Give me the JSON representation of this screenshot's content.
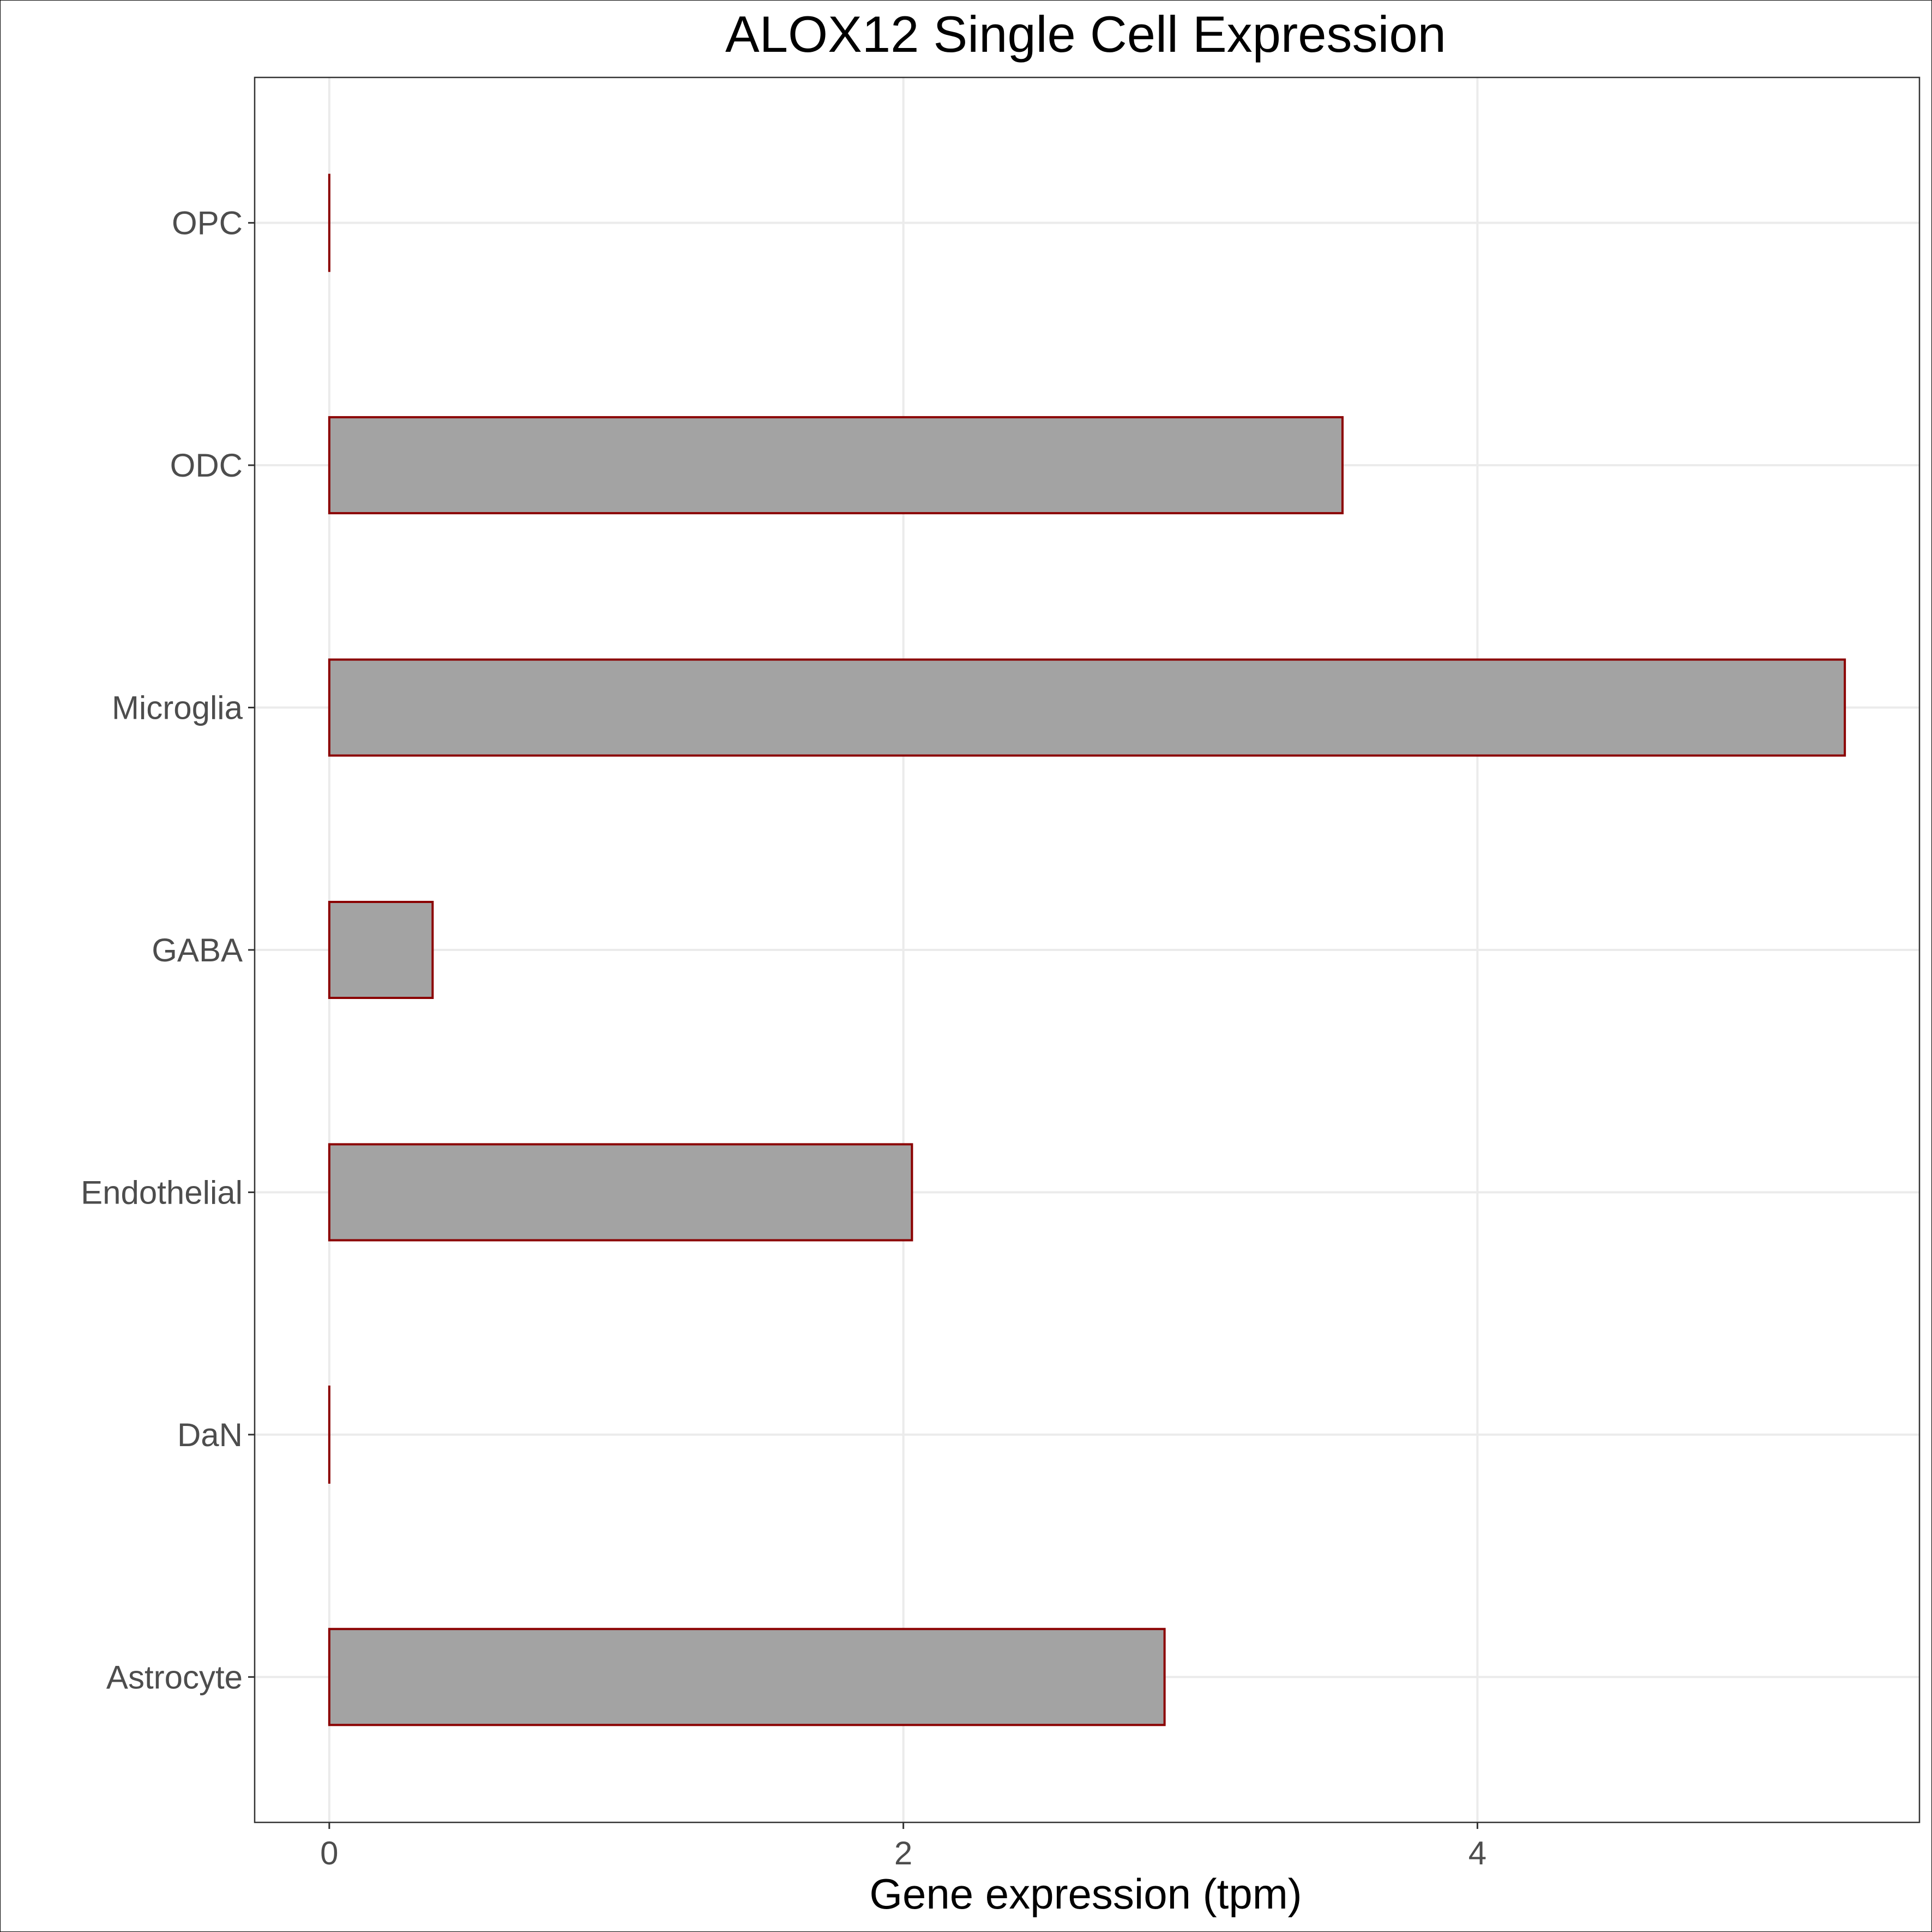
{
  "chart_data": {
    "type": "bar",
    "orientation": "horizontal",
    "title": "ALOX12 Single Cell Expression",
    "xlabel": "Gene expression (tpm)",
    "ylabel": "",
    "categories": [
      "Astrocyte",
      "DaN",
      "Endothelial",
      "GABA",
      "Microglia",
      "ODC",
      "OPC"
    ],
    "values": [
      2.91,
      0.0,
      2.03,
      0.36,
      5.28,
      3.53,
      0.0
    ],
    "xlim": [
      -0.26,
      5.54
    ],
    "xticks": [
      0,
      2,
      4
    ],
    "xtick_labels": [
      "0",
      "2",
      "4"
    ],
    "grid": true,
    "legend": "none",
    "colors": {
      "bar_fill": "#a3a3a3",
      "bar_stroke": "#8b0000",
      "grid": "#ebebeb",
      "panel_border": "#333333",
      "tick_label": "#4d4d4d",
      "text": "#000000"
    }
  }
}
